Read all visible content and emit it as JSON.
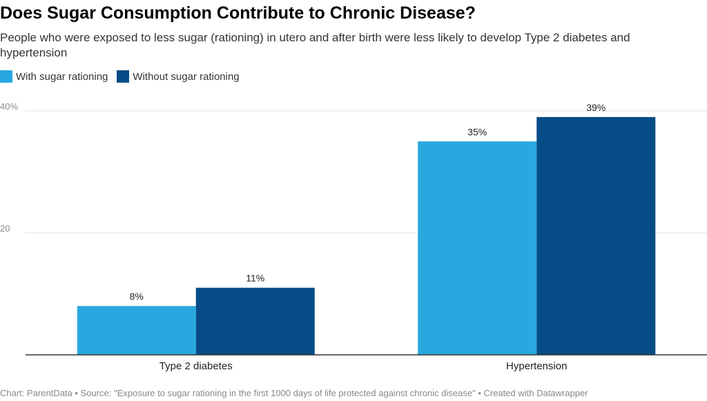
{
  "chart_data": {
    "type": "bar",
    "title": "Does Sugar Consumption Contribute to Chronic Disease?",
    "subtitle": "People who were exposed to less sugar (rationing) in utero and after birth were less likely to develop Type 2 diabetes and hypertension",
    "categories": [
      "Type 2 diabetes",
      "Hypertension"
    ],
    "series": [
      {
        "name": "With sugar rationing",
        "values": [
          8,
          35
        ],
        "labels": [
          "8%",
          "35%"
        ],
        "color": "#29a8e0"
      },
      {
        "name": "Without sugar rationing",
        "values": [
          11,
          39
        ],
        "labels": [
          "11%",
          "39%"
        ],
        "color": "#064d87"
      }
    ],
    "ylim": [
      0,
      40
    ],
    "yticks": [
      {
        "value": 40,
        "label": "40%"
      },
      {
        "value": 20,
        "label": "20"
      }
    ],
    "grid": true,
    "legend": "top-left",
    "xlabel": "",
    "ylabel": ""
  },
  "footer": "Chart: ParentData • Source: \"Exposure to sugar rationing in the first 1000 days of life protected against chronic disease\" • Created with Datawrapper"
}
